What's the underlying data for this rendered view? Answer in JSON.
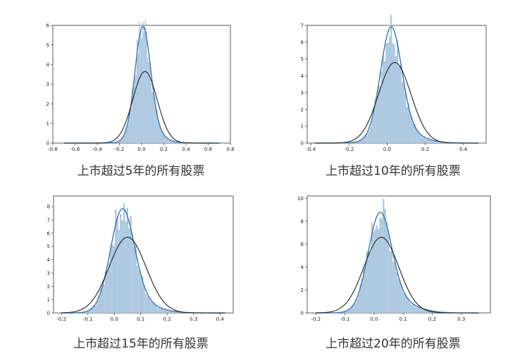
{
  "chart_data": [
    {
      "type": "histogram",
      "caption": "上市超过5年的所有股票",
      "xlim": [
        -0.8,
        0.8
      ],
      "ylim": [
        0,
        6
      ],
      "xticks": [
        "-0.8",
        "-0.6",
        "-0.4",
        "-0.2",
        "0.0",
        "0.2",
        "0.4",
        "0.6",
        "0.8"
      ],
      "xtick_values": [
        -0.8,
        -0.6,
        -0.4,
        -0.2,
        0.0,
        0.2,
        0.4,
        0.6,
        0.8
      ],
      "yticks": [
        "0",
        "1",
        "2",
        "3",
        "4",
        "5",
        "6"
      ],
      "ytick_values": [
        0,
        1,
        2,
        3,
        4,
        5,
        6
      ],
      "hist": {
        "mu": 0.01,
        "sigma": 0.07,
        "peak": 5.4,
        "tail_sigma": 0.12,
        "tail_amp": 0.6,
        "range": [
          -0.5,
          0.45
        ]
      },
      "normal_fit": {
        "mu": 0.03,
        "sigma": 0.11,
        "peak": 3.65
      },
      "curve_range": [
        -0.7,
        0.7
      ]
    },
    {
      "type": "histogram",
      "caption": "上市超过10年的所有股票",
      "xlim": [
        -0.42,
        0.52
      ],
      "ylim": [
        0,
        7
      ],
      "xticks": [
        "-0.4",
        "-0.2",
        "0.0",
        "0.2",
        "0.4"
      ],
      "xtick_values": [
        -0.4,
        -0.2,
        0.0,
        0.2,
        0.4
      ],
      "yticks": [
        "0",
        "1",
        "2",
        "3",
        "4",
        "5",
        "6",
        "7"
      ],
      "ytick_values": [
        0,
        1,
        2,
        3,
        4,
        5,
        6,
        7
      ],
      "hist": {
        "mu": 0.02,
        "sigma": 0.055,
        "peak": 6.3,
        "tail_sigma": 0.1,
        "tail_amp": 0.7,
        "range": [
          -0.3,
          0.45
        ]
      },
      "normal_fit": {
        "mu": 0.04,
        "sigma": 0.085,
        "peak": 4.8
      },
      "curve_range": [
        -0.38,
        0.48
      ]
    },
    {
      "type": "histogram",
      "caption": "上市超过15年的所有股票",
      "xlim": [
        -0.23,
        0.45
      ],
      "ylim": [
        0,
        8.8
      ],
      "xticks": [
        "-0.2",
        "-0.1",
        "0.0",
        "0.1",
        "0.2",
        "0.3",
        "0.4"
      ],
      "xtick_values": [
        -0.2,
        -0.1,
        0.0,
        0.1,
        0.2,
        0.3,
        0.4
      ],
      "yticks": [
        "0",
        "1",
        "2",
        "3",
        "4",
        "5",
        "6",
        "7",
        "8"
      ],
      "ytick_values": [
        0,
        1,
        2,
        3,
        4,
        5,
        6,
        7,
        8
      ],
      "hist": {
        "mu": 0.03,
        "sigma": 0.045,
        "peak": 7.2,
        "tail_sigma": 0.075,
        "tail_amp": 0.8,
        "range": [
          -0.15,
          0.42
        ]
      },
      "normal_fit": {
        "mu": 0.05,
        "sigma": 0.07,
        "peak": 5.7
      },
      "curve_range": [
        -0.2,
        0.42
      ]
    },
    {
      "type": "histogram",
      "caption": "上市超过20年的所有股票",
      "xlim": [
        -0.23,
        0.4
      ],
      "ylim": [
        0,
        10.2
      ],
      "xticks": [
        "-0.2",
        "-0.1",
        "0.0",
        "0.1",
        "0.2",
        "0.3"
      ],
      "xtick_values": [
        -0.2,
        -0.1,
        0.0,
        0.1,
        0.2,
        0.3
      ],
      "yticks": [
        "0",
        "2",
        "4",
        "6",
        "8",
        "10"
      ],
      "ytick_values": [
        0,
        2,
        4,
        6,
        8,
        10
      ],
      "hist": {
        "mu": 0.02,
        "sigma": 0.04,
        "peak": 8.0,
        "tail_sigma": 0.07,
        "tail_amp": 1.0,
        "range": [
          -0.18,
          0.33
        ]
      },
      "normal_fit": {
        "mu": 0.025,
        "sigma": 0.06,
        "peak": 6.6
      },
      "curve_range": [
        -0.2,
        0.36
      ]
    }
  ],
  "colors": {
    "bar": "#a9c5de",
    "kde": "#3b78ae",
    "fit": "#222222",
    "frame": "#333333"
  }
}
